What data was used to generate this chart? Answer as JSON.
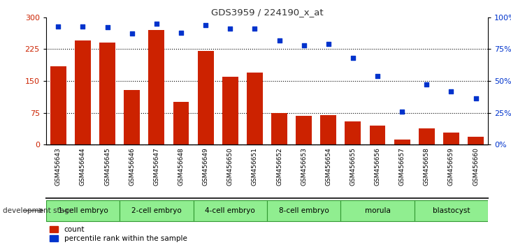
{
  "title": "GDS3959 / 224190_x_at",
  "samples": [
    "GSM456643",
    "GSM456644",
    "GSM456645",
    "GSM456646",
    "GSM456647",
    "GSM456648",
    "GSM456649",
    "GSM456650",
    "GSM456651",
    "GSM456652",
    "GSM456653",
    "GSM456654",
    "GSM456655",
    "GSM456656",
    "GSM456657",
    "GSM456658",
    "GSM456659",
    "GSM456660"
  ],
  "counts": [
    185,
    245,
    240,
    128,
    270,
    100,
    220,
    160,
    170,
    75,
    68,
    70,
    55,
    45,
    12,
    38,
    28,
    18
  ],
  "percentiles": [
    93,
    93,
    92,
    87,
    95,
    88,
    94,
    91,
    91,
    82,
    78,
    79,
    68,
    54,
    26,
    47,
    42,
    36
  ],
  "stages": [
    {
      "label": "1-cell embryo",
      "start": 0,
      "end": 3
    },
    {
      "label": "2-cell embryo",
      "start": 3,
      "end": 6
    },
    {
      "label": "4-cell embryo",
      "start": 6,
      "end": 9
    },
    {
      "label": "8-cell embryo",
      "start": 9,
      "end": 12
    },
    {
      "label": "morula",
      "start": 12,
      "end": 15
    },
    {
      "label": "blastocyst",
      "start": 15,
      "end": 18
    }
  ],
  "bar_color": "#cc2200",
  "dot_color": "#0033cc",
  "ylim_left": [
    0,
    300
  ],
  "ylim_right": [
    0,
    100
  ],
  "yticks_left": [
    0,
    75,
    150,
    225,
    300
  ],
  "yticks_right": [
    0,
    25,
    50,
    75,
    100
  ],
  "stage_color": "#90ee90",
  "stage_edge_color": "#339933",
  "sample_bg_color": "#cccccc",
  "bg_color": "#ffffff",
  "bar_width": 0.65
}
